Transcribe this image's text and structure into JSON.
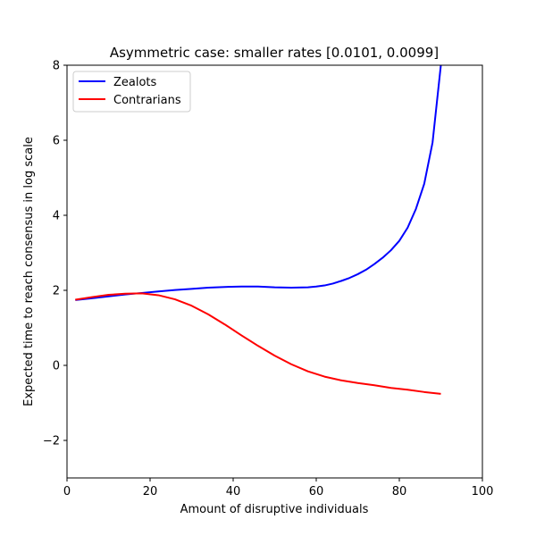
{
  "chart_data": {
    "type": "line",
    "title": "Asymmetric case: smaller rates [0.0101, 0.0099]",
    "xlabel": "Amount of disruptive individuals",
    "ylabel": "Expected time to reach consensus in log scale",
    "xlim": [
      0,
      100
    ],
    "ylim": [
      -3,
      8
    ],
    "xticks": [
      0,
      20,
      40,
      60,
      80,
      100
    ],
    "yticks": [
      -2,
      0,
      2,
      4,
      6,
      8
    ],
    "ytick_labels": [
      "−2",
      "0",
      "2",
      "4",
      "6",
      "8"
    ],
    "grid": false,
    "legend": "top-left",
    "series": [
      {
        "name": "Zealots",
        "color": "#0000ff",
        "x": [
          2,
          6,
          10,
          14,
          18,
          22,
          26,
          30,
          34,
          38,
          42,
          46,
          50,
          54,
          58,
          60,
          62,
          64,
          66,
          68,
          70,
          72,
          74,
          76,
          78,
          80,
          82,
          84,
          86,
          88,
          90
        ],
        "y": [
          1.74,
          1.79,
          1.84,
          1.89,
          1.93,
          1.97,
          2.01,
          2.04,
          2.07,
          2.09,
          2.1,
          2.1,
          2.08,
          2.07,
          2.08,
          2.1,
          2.13,
          2.18,
          2.25,
          2.33,
          2.43,
          2.55,
          2.7,
          2.87,
          3.07,
          3.32,
          3.67,
          4.17,
          4.84,
          5.94,
          8.0
        ]
      },
      {
        "name": "Contrarians",
        "color": "#ff0000",
        "x": [
          2,
          6,
          10,
          14,
          18,
          22,
          26,
          30,
          34,
          38,
          42,
          46,
          50,
          54,
          58,
          62,
          66,
          70,
          74,
          78,
          82,
          86,
          90
        ],
        "y": [
          1.75,
          1.82,
          1.88,
          1.91,
          1.92,
          1.87,
          1.76,
          1.59,
          1.36,
          1.09,
          0.8,
          0.52,
          0.26,
          0.03,
          -0.16,
          -0.3,
          -0.4,
          -0.47,
          -0.53,
          -0.6,
          -0.65,
          -0.71,
          -0.76
        ]
      }
    ]
  }
}
